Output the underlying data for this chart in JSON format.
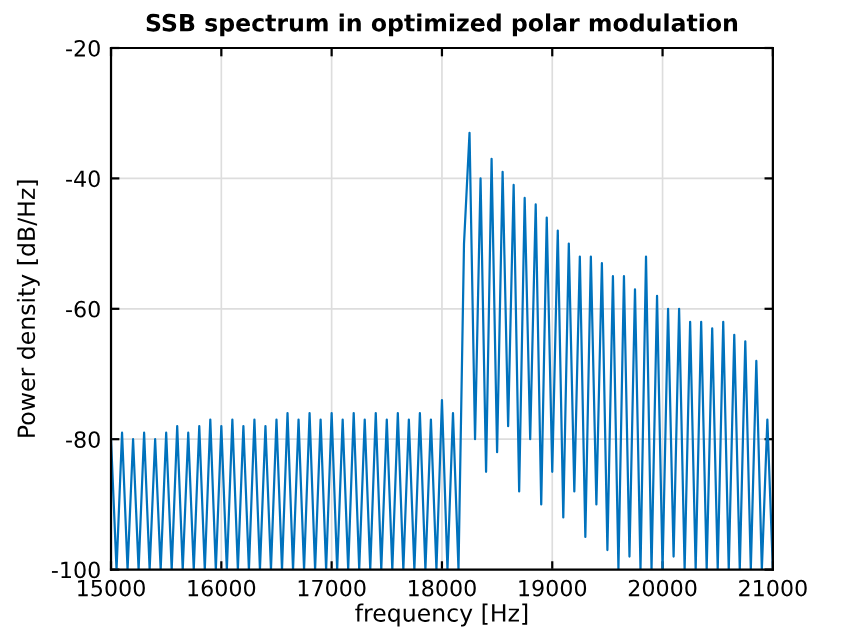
{
  "chart_data": {
    "type": "line",
    "title": "SSB spectrum in optimized polar modulation",
    "xlabel": "frequency [Hz]",
    "ylabel": "Power density [dB/Hz]",
    "xlim": [
      15000,
      21000
    ],
    "xticks": [
      15000,
      16000,
      17000,
      18000,
      19000,
      20000,
      21000
    ],
    "ylim": [
      -100,
      -20
    ],
    "yticks": [
      -100,
      -80,
      -60,
      -40,
      -20
    ],
    "grid": true,
    "legend": false,
    "marker": "none",
    "line_style": "solid",
    "series": [
      {
        "color": "#0072bd",
        "x": [
          15000,
          15050,
          15100,
          15150,
          15200,
          15250,
          15300,
          15350,
          15400,
          15450,
          15500,
          15550,
          15600,
          15650,
          15700,
          15750,
          15800,
          15850,
          15900,
          15950,
          16000,
          16050,
          16100,
          16150,
          16200,
          16250,
          16300,
          16350,
          16400,
          16450,
          16500,
          16550,
          16600,
          16650,
          16700,
          16750,
          16800,
          16850,
          16900,
          16950,
          17000,
          17050,
          17100,
          17150,
          17200,
          17250,
          17300,
          17350,
          17400,
          17450,
          17500,
          17550,
          17600,
          17650,
          17700,
          17750,
          17800,
          17850,
          17900,
          17950,
          18000,
          18050,
          18100,
          18150,
          18200,
          18250,
          18300,
          18350,
          18400,
          18450,
          18500,
          18550,
          18600,
          18650,
          18700,
          18750,
          18800,
          18850,
          18900,
          18950,
          19000,
          19050,
          19100,
          19150,
          19200,
          19250,
          19300,
          19350,
          19400,
          19450,
          19500,
          19550,
          19600,
          19650,
          19700,
          19750,
          19800,
          19850,
          19900,
          19950,
          20000,
          20050,
          20100,
          20150,
          20200,
          20250,
          20300,
          20350,
          20400,
          20450,
          20500,
          20550,
          20600,
          20650,
          20700,
          20750,
          20800,
          20850,
          20900,
          20950,
          21000
        ],
        "values": [
          -80,
          -100,
          -79,
          -100,
          -80,
          -100,
          -79,
          -100,
          -80,
          -100,
          -79,
          -100,
          -78,
          -100,
          -79,
          -100,
          -78,
          -100,
          -77,
          -100,
          -78,
          -100,
          -77,
          -100,
          -78,
          -100,
          -77,
          -100,
          -78,
          -100,
          -77,
          -100,
          -76,
          -100,
          -77,
          -100,
          -76,
          -100,
          -77,
          -100,
          -76,
          -100,
          -77,
          -100,
          -76,
          -100,
          -77,
          -100,
          -76,
          -100,
          -77,
          -100,
          -76,
          -100,
          -77,
          -100,
          -76,
          -100,
          -77,
          -100,
          -74,
          -100,
          -76,
          -100,
          -50,
          -33,
          -80,
          -40,
          -85,
          -37,
          -82,
          -39,
          -78,
          -41,
          -88,
          -43,
          -80,
          -44,
          -90,
          -46,
          -85,
          -48,
          -92,
          -50,
          -88,
          -52,
          -95,
          -52,
          -90,
          -53,
          -97,
          -55,
          -100,
          -55,
          -98,
          -57,
          -100,
          -52,
          -100,
          -58,
          -100,
          -60,
          -98,
          -60,
          -100,
          -62,
          -100,
          -62,
          -100,
          -63,
          -100,
          -62,
          -100,
          -64,
          -100,
          -65,
          -100,
          -68,
          -100,
          -77,
          -100
        ]
      }
    ]
  }
}
